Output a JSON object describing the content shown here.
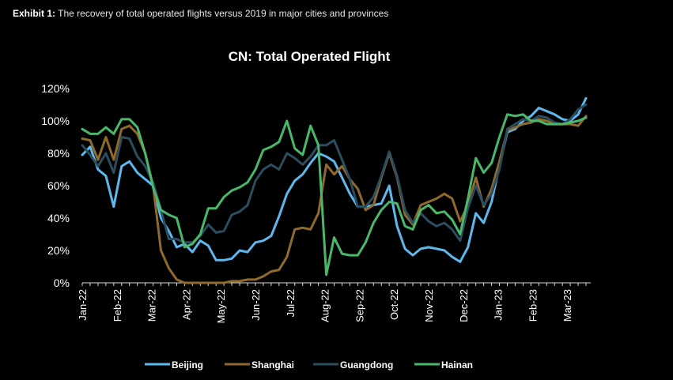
{
  "exhibit": {
    "label": "Exhibit 1:",
    "caption": "The recovery of total operated flights versus 2019 in major cities and provinces"
  },
  "chart_data": {
    "type": "line",
    "title": "CN: Total Operated Flight",
    "xlabel": "",
    "ylabel": "",
    "ylim": [
      0,
      120
    ],
    "y_ticks": [
      "0%",
      "20%",
      "40%",
      "60%",
      "80%",
      "100%",
      "120%"
    ],
    "x_ticks": [
      "Jan-22",
      "Feb-22",
      "Mar-22",
      "Apr-22",
      "May-22",
      "Jun-22",
      "Jul-22",
      "Aug-22",
      "Sep-22",
      "Oct-22",
      "Nov-22",
      "Dec-22",
      "Jan-23",
      "Feb-23",
      "Mar-23"
    ],
    "grid": false,
    "legend_position": "bottom",
    "x_unit": "weeks since start of Jan-22",
    "series": [
      {
        "name": "Beijing",
        "color": "#5fb8ec",
        "x": [
          0,
          1,
          2,
          3,
          4,
          5,
          6,
          7,
          8,
          9,
          10,
          11,
          12,
          13,
          14,
          15,
          16,
          17,
          18,
          19,
          20,
          21,
          22,
          23,
          24,
          25,
          26,
          27,
          28,
          29,
          30,
          31,
          32,
          33,
          34,
          35,
          36,
          37,
          38,
          39,
          40,
          41,
          42,
          43,
          44,
          45,
          46,
          47,
          48,
          49,
          50,
          51,
          52,
          53,
          54,
          55,
          56,
          57,
          58,
          59,
          60,
          61,
          62,
          63,
          64
        ],
        "values": [
          79,
          84,
          70,
          66,
          47,
          72,
          75,
          68,
          64,
          60,
          40,
          32,
          22,
          24,
          19,
          26,
          23,
          14,
          14,
          15,
          20,
          19,
          25,
          26,
          29,
          41,
          55,
          63,
          67,
          74,
          80,
          78,
          75,
          65,
          55,
          47,
          47,
          48,
          49,
          60,
          35,
          21,
          17,
          21,
          22,
          21,
          20,
          16,
          13,
          22,
          43,
          37,
          50,
          72,
          93,
          95,
          100,
          103,
          108,
          106,
          104,
          101,
          100,
          104,
          114
        ]
      },
      {
        "name": "Shanghai",
        "color": "#8f6a2c",
        "x": [
          0,
          1,
          2,
          3,
          4,
          5,
          6,
          7,
          8,
          9,
          10,
          11,
          12,
          13,
          14,
          15,
          16,
          17,
          18,
          19,
          20,
          21,
          22,
          23,
          24,
          25,
          26,
          27,
          28,
          29,
          30,
          31,
          32,
          33,
          34,
          35,
          36,
          37,
          38,
          39,
          40,
          41,
          42,
          43,
          44,
          45,
          46,
          47,
          48,
          49,
          50,
          51,
          52,
          53,
          54,
          55,
          56,
          57,
          58,
          59,
          60,
          61,
          62,
          63,
          64
        ],
        "values": [
          89,
          88,
          76,
          90,
          76,
          95,
          97,
          92,
          80,
          60,
          20,
          9,
          2,
          0,
          0,
          0,
          0,
          0,
          0,
          1,
          1,
          2,
          2,
          4,
          7,
          8,
          16,
          33,
          34,
          33,
          43,
          73,
          67,
          72,
          64,
          58,
          45,
          48,
          65,
          80,
          65,
          42,
          36,
          48,
          50,
          52,
          55,
          52,
          38,
          48,
          65,
          47,
          58,
          75,
          94,
          96,
          98,
          99,
          101,
          100,
          98,
          98,
          98,
          97,
          103
        ]
      },
      {
        "name": "Guangdong",
        "color": "#2b4d5e",
        "x": [
          0,
          1,
          2,
          3,
          4,
          5,
          6,
          7,
          8,
          9,
          10,
          11,
          12,
          13,
          14,
          15,
          16,
          17,
          18,
          19,
          20,
          21,
          22,
          23,
          24,
          25,
          26,
          27,
          28,
          29,
          30,
          31,
          32,
          33,
          34,
          35,
          36,
          37,
          38,
          39,
          40,
          41,
          42,
          43,
          44,
          45,
          46,
          47,
          48,
          49,
          50,
          51,
          52,
          53,
          54,
          55,
          56,
          57,
          58,
          59,
          60,
          61,
          62,
          63,
          64
        ],
        "values": [
          85,
          79,
          72,
          80,
          68,
          90,
          89,
          78,
          72,
          62,
          45,
          27,
          27,
          25,
          25,
          29,
          36,
          31,
          32,
          42,
          44,
          48,
          63,
          70,
          73,
          70,
          80,
          77,
          73,
          78,
          85,
          85,
          88,
          76,
          64,
          47,
          47,
          53,
          66,
          81,
          66,
          45,
          37,
          43,
          38,
          35,
          37,
          33,
          26,
          46,
          60,
          48,
          55,
          70,
          95,
          98,
          101,
          100,
          103,
          102,
          99,
          98,
          101,
          107,
          110
        ]
      },
      {
        "name": "Hainan",
        "color": "#4ab86a",
        "x": [
          0,
          1,
          2,
          3,
          4,
          5,
          6,
          7,
          8,
          9,
          10,
          11,
          12,
          13,
          14,
          15,
          16,
          17,
          18,
          19,
          20,
          21,
          22,
          23,
          24,
          25,
          26,
          27,
          28,
          29,
          30,
          31,
          32,
          33,
          34,
          35,
          36,
          37,
          38,
          39,
          40,
          41,
          42,
          43,
          44,
          45,
          46,
          47,
          48,
          49,
          50,
          51,
          52,
          53,
          54,
          55,
          56,
          57,
          58,
          59,
          60,
          61,
          62,
          63,
          64
        ],
        "values": [
          95,
          92,
          92,
          96,
          92,
          101,
          101,
          96,
          80,
          59,
          45,
          42,
          40,
          22,
          24,
          30,
          46,
          46,
          53,
          57,
          59,
          62,
          70,
          82,
          84,
          87,
          100,
          83,
          79,
          97,
          85,
          5,
          28,
          18,
          17,
          17,
          25,
          37,
          45,
          50,
          49,
          35,
          33,
          45,
          48,
          43,
          44,
          39,
          30,
          52,
          77,
          68,
          74,
          90,
          104,
          103,
          104,
          100,
          100,
          98,
          98,
          98,
          99,
          100,
          102
        ]
      }
    ]
  }
}
